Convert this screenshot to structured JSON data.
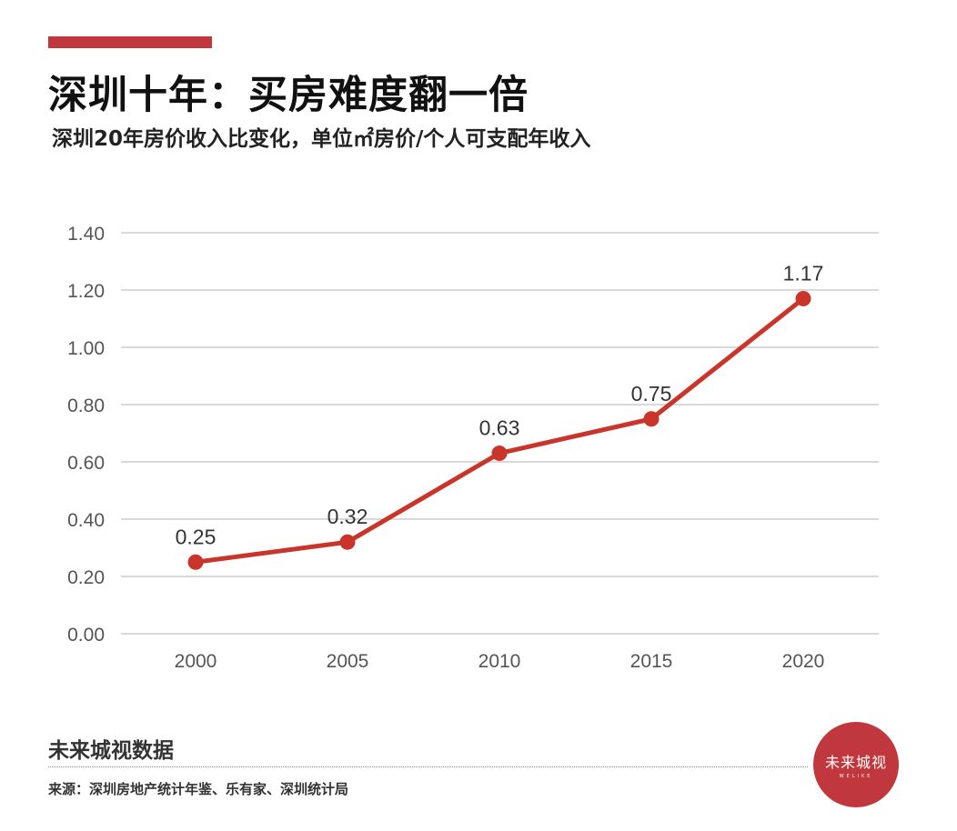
{
  "header": {
    "title": "深圳十年：买房难度翻一倍",
    "subtitle": "深圳20年房价收入比变化，单位㎡房价/个人可支配年收入"
  },
  "colors": {
    "accent": "#c0373d",
    "line": "#c9352b",
    "grid": "#d9d9d9",
    "axis_text": "#555555",
    "label_text": "#333333"
  },
  "chart_data": {
    "type": "line",
    "x": [
      "2000",
      "2005",
      "2010",
      "2015",
      "2020"
    ],
    "y_ticks": [
      "0.00",
      "0.20",
      "0.40",
      "0.60",
      "0.80",
      "1.00",
      "1.20",
      "1.40"
    ],
    "ylim": [
      0,
      1.4
    ],
    "series": [
      {
        "values": [
          0.25,
          0.32,
          0.63,
          0.75,
          1.17
        ]
      }
    ],
    "data_labels": [
      "0.25",
      "0.32",
      "0.63",
      "0.75",
      "1.17"
    ],
    "grid": true,
    "legend": "none"
  },
  "footer": {
    "brand_source": "未来城视数据",
    "source": "来源：深圳房地产统计年鉴、乐有家、深圳统计局"
  },
  "logo": {
    "text": "未来城视",
    "subtext": "WELIKE"
  }
}
